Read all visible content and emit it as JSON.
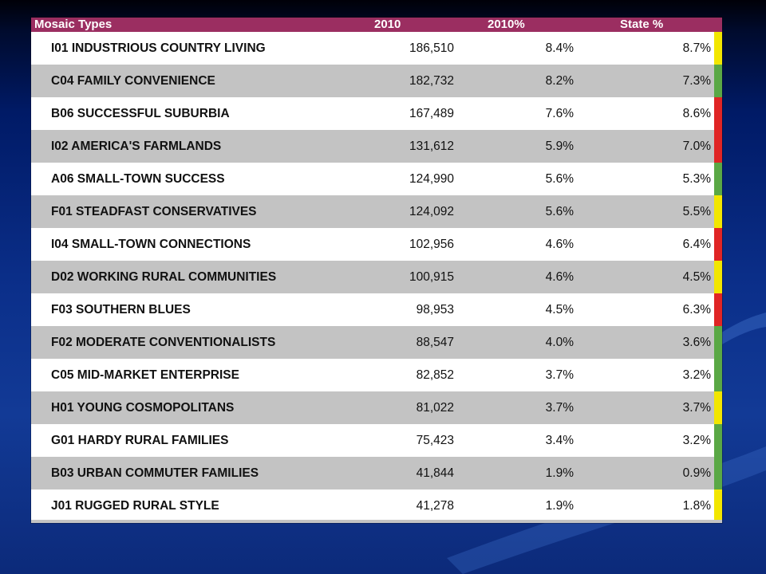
{
  "table": {
    "headers": {
      "type": "Mosaic Types",
      "year": "2010",
      "pct": "2010%",
      "state": "State %"
    },
    "colors": {
      "header_bg": "#9b2e61",
      "alt_row": "#c3c3c3",
      "yellow": "#f2e600",
      "green": "#5aa845",
      "red": "#e02525"
    },
    "rows": [
      {
        "name": "I01 INDUSTRIOUS COUNTRY LIVING",
        "v2010": "186,510",
        "pct": "8.4%",
        "state": "8.7%",
        "flag": "yellow"
      },
      {
        "name": "C04 FAMILY CONVENIENCE",
        "v2010": "182,732",
        "pct": "8.2%",
        "state": "7.3%",
        "flag": "green"
      },
      {
        "name": "B06 SUCCESSFUL SUBURBIA",
        "v2010": "167,489",
        "pct": "7.6%",
        "state": "8.6%",
        "flag": "red"
      },
      {
        "name": "I02 AMERICA'S FARMLANDS",
        "v2010": "131,612",
        "pct": "5.9%",
        "state": "7.0%",
        "flag": "red"
      },
      {
        "name": "A06 SMALL-TOWN SUCCESS",
        "v2010": "124,990",
        "pct": "5.6%",
        "state": "5.3%",
        "flag": "green"
      },
      {
        "name": "F01 STEADFAST CONSERVATIVES",
        "v2010": "124,092",
        "pct": "5.6%",
        "state": "5.5%",
        "flag": "yellow"
      },
      {
        "name": "I04 SMALL-TOWN CONNECTIONS",
        "v2010": "102,956",
        "pct": "4.6%",
        "state": "6.4%",
        "flag": "red"
      },
      {
        "name": "D02 WORKING RURAL COMMUNITIES",
        "v2010": "100,915",
        "pct": "4.6%",
        "state": "4.5%",
        "flag": "yellow"
      },
      {
        "name": "F03 SOUTHERN BLUES",
        "v2010": "98,953",
        "pct": "4.5%",
        "state": "6.3%",
        "flag": "red"
      },
      {
        "name": "F02 MODERATE CONVENTIONALISTS",
        "v2010": "88,547",
        "pct": "4.0%",
        "state": "3.6%",
        "flag": "green"
      },
      {
        "name": "C05 MID-MARKET ENTERPRISE",
        "v2010": "82,852",
        "pct": "3.7%",
        "state": "3.2%",
        "flag": "green"
      },
      {
        "name": "H01 YOUNG COSMOPOLITANS",
        "v2010": "81,022",
        "pct": "3.7%",
        "state": "3.7%",
        "flag": "yellow"
      },
      {
        "name": "G01 HARDY RURAL FAMILIES",
        "v2010": "75,423",
        "pct": "3.4%",
        "state": "3.2%",
        "flag": "green"
      },
      {
        "name": "B03 URBAN COMMUTER FAMILIES",
        "v2010": "41,844",
        "pct": "1.9%",
        "state": "0.9%",
        "flag": "green"
      },
      {
        "name": "J01 RUGGED RURAL STYLE",
        "v2010": "41,278",
        "pct": "1.9%",
        "state": "1.8%",
        "flag": "yellow"
      }
    ]
  }
}
